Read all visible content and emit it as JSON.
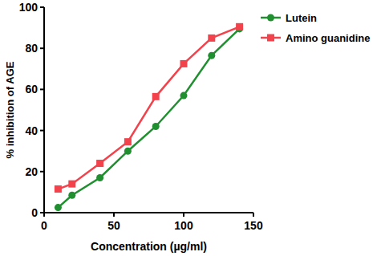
{
  "chart_data": {
    "type": "line",
    "x_label": "Concentration (µg/ml)",
    "y_label": "% inhibition of AGE",
    "x": [
      10,
      20,
      40,
      60,
      80,
      100,
      120,
      140
    ],
    "series": [
      {
        "name": "Lutein",
        "color": "#1f8f2f",
        "marker": "circle",
        "values": [
          2.5,
          8.5,
          17,
          30,
          42,
          57,
          76.5,
          89.5
        ]
      },
      {
        "name": "Amino guanidine",
        "color": "#f2424c",
        "marker": "square",
        "values": [
          11.5,
          14,
          24,
          34.5,
          56.5,
          72.5,
          85,
          90.5
        ]
      }
    ],
    "xlim": [
      0,
      150
    ],
    "xticks": [
      0,
      50,
      100,
      150
    ],
    "ylim": [
      0,
      100
    ],
    "yticks": [
      0,
      20,
      40,
      60,
      80,
      100
    ],
    "grid": false,
    "legend": "right"
  }
}
